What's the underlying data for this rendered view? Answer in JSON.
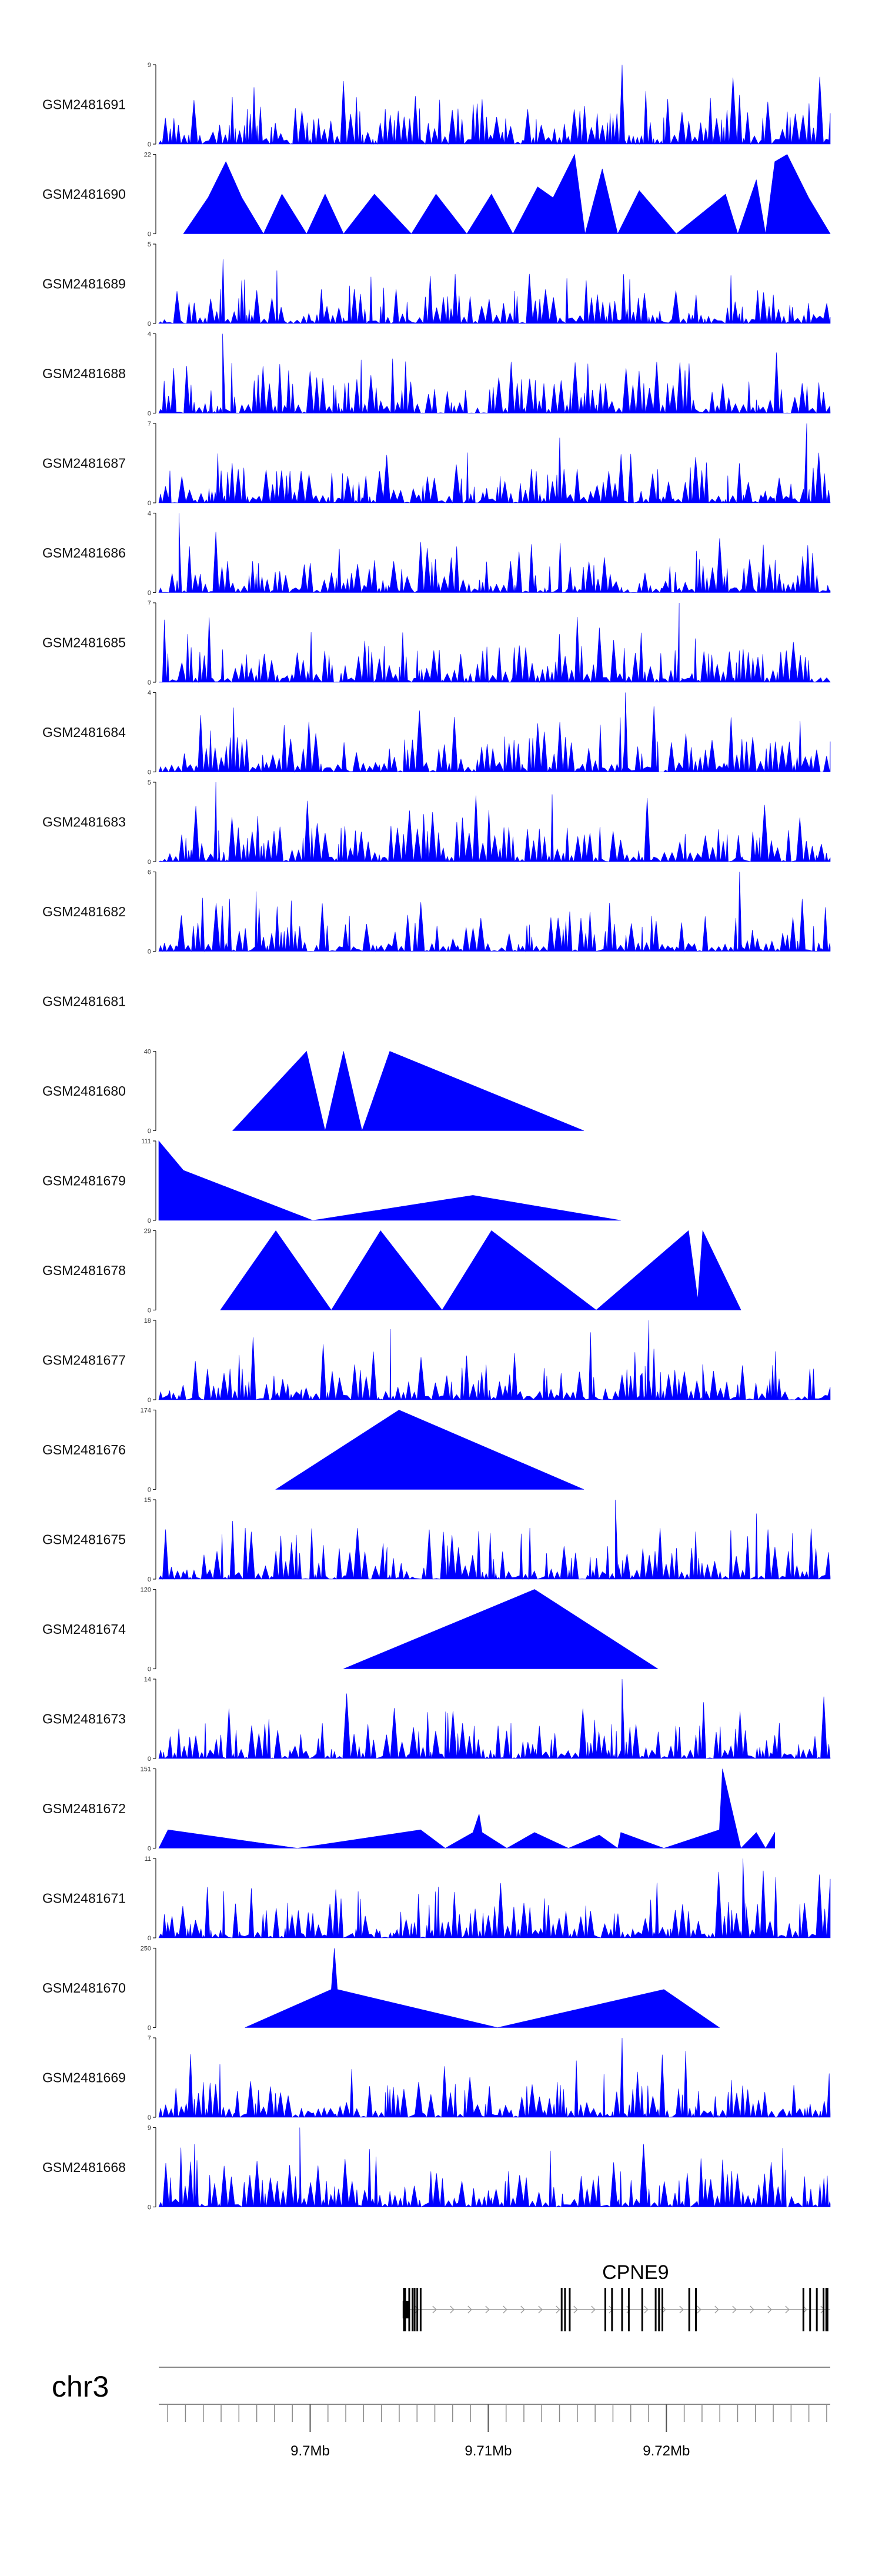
{
  "chart_data": {
    "type": "area",
    "title": "",
    "chromosome": "chr3",
    "genomic_range_mb": [
      9.6915,
      9.7292
    ],
    "colors": {
      "signal": "#0000ff",
      "axis": "#222222",
      "gene": "#000000",
      "intron_arrow": "#9a9a9a"
    },
    "tracks": [
      {
        "name": "GSM2481691",
        "ymax": 9,
        "pattern": "spiky",
        "seed": 11,
        "peaks": [
          [
            0.69,
            9
          ]
        ]
      },
      {
        "name": "GSM2481690",
        "ymax": 22,
        "pattern": "custom",
        "points": [
          [
            0.04,
            0
          ],
          [
            0.08,
            10
          ],
          [
            0.109,
            20
          ],
          [
            0.135,
            10
          ],
          [
            0.17,
            0
          ],
          [
            0.2,
            11
          ],
          [
            0.24,
            0
          ],
          [
            0.27,
            11
          ],
          [
            0.3,
            0
          ],
          [
            0.35,
            11
          ],
          [
            0.41,
            0
          ],
          [
            0.45,
            11
          ],
          [
            0.5,
            0
          ],
          [
            0.54,
            11
          ],
          [
            0.575,
            0
          ],
          [
            0.615,
            13
          ],
          [
            0.64,
            10
          ],
          [
            0.675,
            22
          ],
          [
            0.692,
            0
          ],
          [
            0.72,
            18
          ],
          [
            0.745,
            0
          ],
          [
            0.78,
            12
          ],
          [
            0.84,
            0
          ],
          [
            0.92,
            11
          ],
          [
            0.94,
            0
          ],
          [
            0.97,
            15
          ],
          [
            0.985,
            0
          ],
          [
            1.0,
            20
          ],
          [
            1.02,
            22
          ],
          [
            1.055,
            10
          ],
          [
            1.09,
            0
          ]
        ]
      },
      {
        "name": "GSM2481689",
        "ymax": 5,
        "pattern": "spiky",
        "seed": 21,
        "peaks": []
      },
      {
        "name": "GSM2481688",
        "ymax": 4,
        "pattern": "spiky",
        "seed": 33,
        "peaks": [
          [
            0.095,
            4
          ]
        ]
      },
      {
        "name": "GSM2481687",
        "ymax": 7,
        "pattern": "spiky",
        "seed": 44,
        "peaks": [
          [
            0.965,
            7
          ]
        ]
      },
      {
        "name": "GSM2481686",
        "ymax": 4,
        "pattern": "spiky",
        "seed": 55,
        "peaks": [
          [
            0.03,
            4
          ]
        ]
      },
      {
        "name": "GSM2481685",
        "ymax": 7,
        "pattern": "spiky",
        "seed": 66,
        "peaks": [
          [
            0.775,
            7
          ]
        ]
      },
      {
        "name": "GSM2481684",
        "ymax": 4,
        "pattern": "spiky",
        "seed": 77,
        "peaks": [
          [
            0.695,
            4
          ]
        ]
      },
      {
        "name": "GSM2481683",
        "ymax": 5,
        "pattern": "spiky",
        "seed": 88,
        "peaks": [
          [
            0.085,
            5
          ]
        ]
      },
      {
        "name": "GSM2481682",
        "ymax": 6,
        "pattern": "spiky",
        "seed": 99,
        "peaks": [
          [
            0.865,
            6
          ]
        ]
      },
      {
        "name": "GSM2481681",
        "ymax": null,
        "pattern": "empty"
      },
      {
        "name": "GSM2481680",
        "ymax": 40,
        "pattern": "custom",
        "points": [
          [
            0.12,
            0
          ],
          [
            0.24,
            40
          ],
          [
            0.27,
            0
          ],
          [
            0.3,
            40
          ],
          [
            0.33,
            0
          ],
          [
            0.375,
            40
          ],
          [
            0.69,
            0
          ]
        ]
      },
      {
        "name": "GSM2481679",
        "ymax": 111,
        "pattern": "custom",
        "points": [
          [
            0,
            0
          ],
          [
            0,
            111
          ],
          [
            0.04,
            70
          ],
          [
            0.25,
            0
          ],
          [
            0.51,
            35
          ],
          [
            0.75,
            0
          ]
        ]
      },
      {
        "name": "GSM2481678",
        "ymax": 29,
        "pattern": "custom",
        "points": [
          [
            0.1,
            0
          ],
          [
            0.19,
            29
          ],
          [
            0.28,
            0
          ],
          [
            0.36,
            29
          ],
          [
            0.46,
            0
          ],
          [
            0.54,
            29
          ],
          [
            0.71,
            0
          ],
          [
            0.86,
            29
          ],
          [
            0.875,
            4
          ],
          [
            0.883,
            29
          ],
          [
            0.945,
            0
          ]
        ]
      },
      {
        "name": "GSM2481677",
        "ymax": 18,
        "pattern": "spiky",
        "seed": 111,
        "peaks": [
          [
            0.345,
            16
          ],
          [
            0.72,
            6
          ],
          [
            0.73,
            18
          ],
          [
            0.81,
            8
          ]
        ]
      },
      {
        "name": "GSM2481676",
        "ymax": 174,
        "pattern": "custom",
        "points": [
          [
            0.19,
            0
          ],
          [
            0.39,
            174
          ],
          [
            0.69,
            0
          ]
        ]
      },
      {
        "name": "GSM2481675",
        "ymax": 15,
        "pattern": "spiky",
        "seed": 122,
        "peaks": [
          [
            0.11,
            11
          ],
          [
            0.34,
            6
          ],
          [
            0.68,
            15
          ]
        ]
      },
      {
        "name": "GSM2481674",
        "ymax": 120,
        "pattern": "custom",
        "points": [
          [
            0.3,
            0
          ],
          [
            0.61,
            120
          ],
          [
            0.81,
            0
          ]
        ]
      },
      {
        "name": "GSM2481673",
        "ymax": 14,
        "pattern": "spiky",
        "seed": 133,
        "peaks": [
          [
            0.69,
            14
          ]
        ]
      },
      {
        "name": "GSM2481672",
        "ymax": 151,
        "pattern": "custom",
        "points": [
          [
            0,
            0
          ],
          [
            0.015,
            35
          ],
          [
            0.225,
            0
          ],
          [
            0.425,
            35
          ],
          [
            0.465,
            0
          ],
          [
            0.51,
            30
          ],
          [
            0.52,
            65
          ],
          [
            0.525,
            30
          ],
          [
            0.565,
            0
          ],
          [
            0.61,
            30
          ],
          [
            0.665,
            0
          ],
          [
            0.715,
            25
          ],
          [
            0.745,
            0
          ],
          [
            0.75,
            30
          ],
          [
            0.82,
            0
          ],
          [
            0.91,
            35
          ],
          [
            0.915,
            151
          ],
          [
            0.945,
            0
          ],
          [
            0.97,
            30
          ],
          [
            0.985,
            0
          ],
          [
            1.0,
            30
          ]
        ]
      },
      {
        "name": "GSM2481671",
        "ymax": 11,
        "pattern": "spiky",
        "seed": 144,
        "peaks": [
          [
            0.87,
            11
          ]
        ]
      },
      {
        "name": "GSM2481670",
        "ymax": 250,
        "pattern": "custom",
        "points": [
          [
            0.14,
            0
          ],
          [
            0.28,
            120
          ],
          [
            0.285,
            250
          ],
          [
            0.29,
            120
          ],
          [
            0.55,
            0
          ],
          [
            0.82,
            120
          ],
          [
            0.91,
            0
          ]
        ]
      },
      {
        "name": "GSM2481669",
        "ymax": 7,
        "pattern": "spiky",
        "seed": 155,
        "peaks": [
          [
            0.69,
            7
          ]
        ]
      },
      {
        "name": "GSM2481668",
        "ymax": 9,
        "pattern": "spiky",
        "seed": 166,
        "peaks": [
          [
            0.21,
            9
          ]
        ]
      }
    ],
    "gene": {
      "name": "CPNE9",
      "start_frac": 0.365,
      "end_frac": 1.0,
      "exon_fracs": [
        0.366,
        0.373,
        0.378,
        0.381,
        0.385,
        0.39,
        0.6,
        0.605,
        0.612,
        0.665,
        0.675,
        0.69,
        0.7,
        0.72,
        0.74,
        0.745,
        0.75,
        0.79,
        0.8,
        0.96,
        0.97,
        0.98,
        0.99,
        0.995
      ],
      "intron_arrow_direction": "forward"
    },
    "axis": {
      "ticks_mb": [
        9.7,
        9.71,
        9.72
      ],
      "tick_labels": [
        "9.7Mb",
        "9.71Mb",
        "9.72Mb"
      ],
      "minor_tick_count": 38
    }
  }
}
